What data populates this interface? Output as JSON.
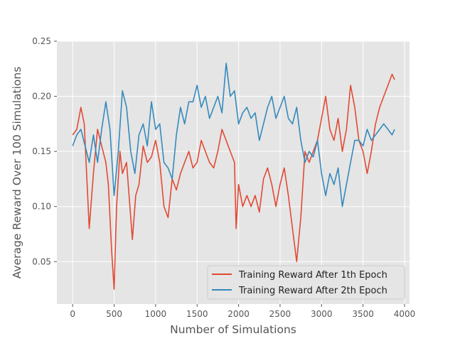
{
  "chart_data": {
    "type": "line",
    "title": "",
    "xlabel": "Number of Simulations",
    "ylabel": "Average Reward Over 100 Simulations",
    "xlim": [
      -190,
      4060
    ],
    "ylim": [
      0.0115,
      0.25
    ],
    "xticks": [
      0,
      500,
      1000,
      1500,
      2000,
      2500,
      3000,
      3500,
      4000
    ],
    "yticks": [
      0.05,
      0.1,
      0.15,
      0.2,
      0.25
    ],
    "xtick_labels": [
      "0",
      "500",
      "1000",
      "1500",
      "2000",
      "2500",
      "3000",
      "3500",
      "4000"
    ],
    "ytick_labels": [
      "0.05",
      "0.10",
      "0.15",
      "0.20",
      "0.25"
    ],
    "grid": true,
    "legend_position": "lower-right",
    "series": [
      {
        "name": "Training Reward After 1th Epoch",
        "color": "#E24A33",
        "x": [
          0,
          50,
          100,
          140,
          200,
          250,
          300,
          350,
          400,
          430,
          470,
          500,
          530,
          570,
          600,
          650,
          700,
          720,
          760,
          800,
          850,
          900,
          950,
          1000,
          1050,
          1100,
          1150,
          1200,
          1250,
          1300,
          1350,
          1400,
          1450,
          1500,
          1550,
          1600,
          1650,
          1700,
          1750,
          1800,
          1850,
          1900,
          1950,
          1970,
          2000,
          2050,
          2100,
          2150,
          2200,
          2250,
          2300,
          2350,
          2400,
          2450,
          2500,
          2550,
          2600,
          2650,
          2700,
          2750,
          2800,
          2850,
          2900,
          2950,
          3000,
          3050,
          3100,
          3150,
          3200,
          3250,
          3300,
          3350,
          3400,
          3450,
          3500,
          3550,
          3600,
          3650,
          3700,
          3750,
          3800,
          3850,
          3880
        ],
        "values": [
          0.165,
          0.17,
          0.19,
          0.175,
          0.08,
          0.13,
          0.17,
          0.155,
          0.14,
          0.12,
          0.06,
          0.025,
          0.1,
          0.15,
          0.13,
          0.14,
          0.09,
          0.07,
          0.11,
          0.12,
          0.155,
          0.14,
          0.145,
          0.16,
          0.14,
          0.1,
          0.09,
          0.125,
          0.115,
          0.13,
          0.14,
          0.15,
          0.135,
          0.14,
          0.16,
          0.15,
          0.14,
          0.135,
          0.15,
          0.17,
          0.16,
          0.15,
          0.14,
          0.08,
          0.12,
          0.1,
          0.11,
          0.1,
          0.11,
          0.095,
          0.125,
          0.135,
          0.12,
          0.1,
          0.12,
          0.135,
          0.11,
          0.08,
          0.05,
          0.09,
          0.15,
          0.14,
          0.15,
          0.16,
          0.18,
          0.2,
          0.17,
          0.16,
          0.18,
          0.15,
          0.17,
          0.21,
          0.19,
          0.16,
          0.15,
          0.13,
          0.15,
          0.175,
          0.19,
          0.2,
          0.21,
          0.22,
          0.215
        ]
      },
      {
        "name": "Training Reward After 2th Epoch",
        "color": "#348ABD",
        "x": [
          0,
          50,
          100,
          150,
          200,
          250,
          300,
          350,
          400,
          450,
          500,
          550,
          600,
          650,
          700,
          750,
          800,
          850,
          900,
          950,
          1000,
          1050,
          1100,
          1150,
          1200,
          1250,
          1300,
          1350,
          1400,
          1450,
          1500,
          1550,
          1600,
          1650,
          1700,
          1750,
          1800,
          1850,
          1900,
          1950,
          2000,
          2050,
          2100,
          2150,
          2200,
          2250,
          2300,
          2350,
          2400,
          2450,
          2500,
          2550,
          2600,
          2650,
          2700,
          2750,
          2800,
          2850,
          2900,
          2950,
          3000,
          3050,
          3100,
          3150,
          3200,
          3250,
          3300,
          3350,
          3400,
          3450,
          3500,
          3550,
          3600,
          3650,
          3700,
          3750,
          3800,
          3850,
          3880
        ],
        "values": [
          0.155,
          0.165,
          0.17,
          0.155,
          0.14,
          0.165,
          0.14,
          0.17,
          0.195,
          0.17,
          0.11,
          0.15,
          0.205,
          0.19,
          0.15,
          0.13,
          0.165,
          0.175,
          0.155,
          0.195,
          0.17,
          0.175,
          0.14,
          0.135,
          0.125,
          0.165,
          0.19,
          0.175,
          0.195,
          0.195,
          0.21,
          0.19,
          0.2,
          0.18,
          0.19,
          0.2,
          0.185,
          0.23,
          0.2,
          0.205,
          0.175,
          0.185,
          0.19,
          0.18,
          0.185,
          0.16,
          0.175,
          0.19,
          0.2,
          0.18,
          0.19,
          0.2,
          0.18,
          0.175,
          0.19,
          0.16,
          0.14,
          0.15,
          0.145,
          0.16,
          0.13,
          0.11,
          0.13,
          0.12,
          0.135,
          0.1,
          0.12,
          0.14,
          0.16,
          0.16,
          0.155,
          0.17,
          0.16,
          0.165,
          0.17,
          0.175,
          0.17,
          0.165,
          0.17
        ]
      }
    ]
  }
}
